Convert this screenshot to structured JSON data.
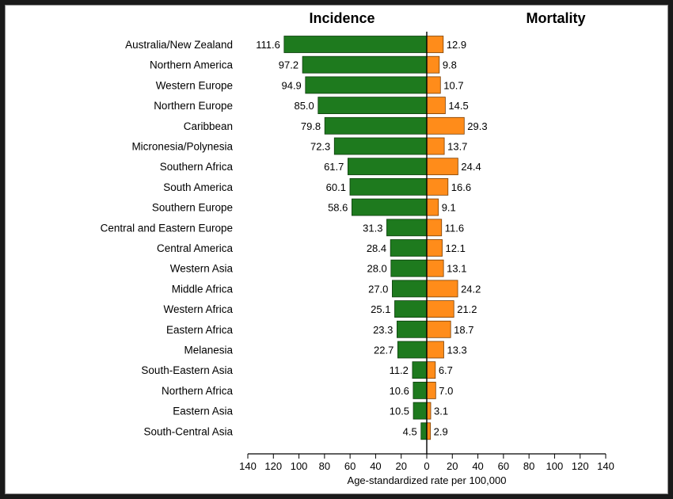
{
  "chart_data": {
    "type": "bar",
    "orientation": "horizontal-diverging",
    "left_header": "Incidence",
    "right_header": "Mortality",
    "xlabel": "Age-standardized rate per 100,000",
    "xlim": [
      -140,
      140
    ],
    "ticks": [
      140,
      120,
      100,
      80,
      60,
      40,
      20,
      0,
      20,
      40,
      60,
      80,
      100,
      120,
      140
    ],
    "categories": [
      "Australia/New Zealand",
      "Northern America",
      "Western Europe",
      "Northern Europe",
      "Caribbean",
      "Micronesia/Polynesia",
      "Southern Africa",
      "South America",
      "Southern Europe",
      "Central and Eastern Europe",
      "Central America",
      "Western Asia",
      "Middle Africa",
      "Western Africa",
      "Eastern Africa",
      "Melanesia",
      "South-Eastern Asia",
      "Northern Africa",
      "Eastern Asia",
      "South-Central Asia"
    ],
    "series": [
      {
        "name": "Incidence",
        "color": "#1e7a1e",
        "values": [
          111.6,
          97.2,
          94.9,
          85.0,
          79.8,
          72.3,
          61.7,
          60.1,
          58.6,
          31.3,
          28.4,
          28.0,
          27.0,
          25.1,
          23.3,
          22.7,
          11.2,
          10.6,
          10.5,
          4.5
        ],
        "labels": [
          "111.6",
          "97.2",
          "94.9",
          "85.0",
          "79.8",
          "72.3",
          "61.7",
          "60.1",
          "58.6",
          "31.3",
          "28.4",
          "28.0",
          "27.0",
          "25.1",
          "23.3",
          "22.7",
          "11.2",
          "10.6",
          "10.5",
          "4.5"
        ]
      },
      {
        "name": "Mortality",
        "color": "#ff8c1a",
        "values": [
          12.9,
          9.8,
          10.7,
          14.5,
          29.3,
          13.7,
          24.4,
          16.6,
          9.1,
          11.6,
          12.1,
          13.1,
          24.2,
          21.2,
          18.7,
          13.3,
          6.7,
          7.0,
          3.1,
          2.9
        ],
        "labels": [
          "12.9",
          "9.8",
          "10.7",
          "14.5",
          "29.3",
          "13.7",
          "24.4",
          "16.6",
          "9.1",
          "11.6",
          "12.1",
          "13.1",
          "24.2",
          "21.2",
          "18.7",
          "13.3",
          "6.7",
          "7.0",
          "3.1",
          "2.9"
        ]
      }
    ],
    "grid": false,
    "legend": "none"
  }
}
